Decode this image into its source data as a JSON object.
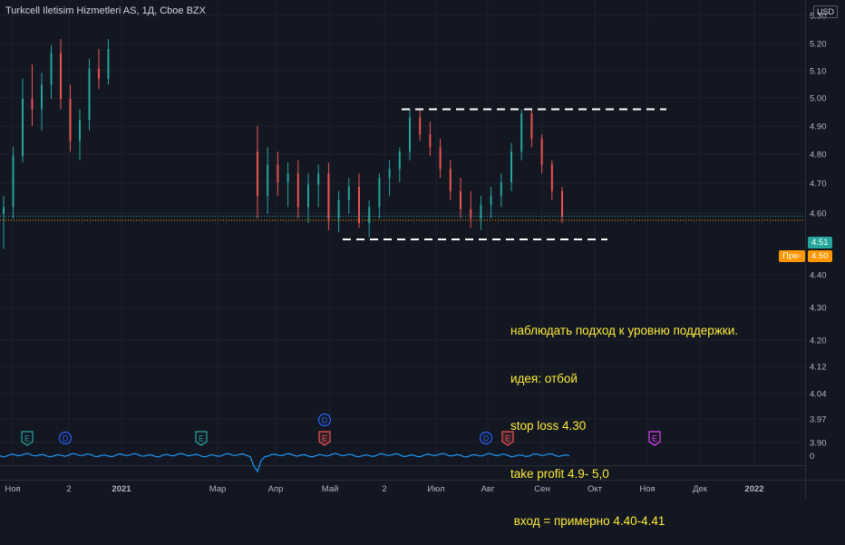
{
  "header": {
    "symbol": "Turkcell Iletisim Hizmetleri AS, 1Д, Cboe BZX",
    "currency": "USD"
  },
  "chart_data": {
    "type": "candlestick",
    "title": "Turkcell Iletisim Hizmetleri AS, 1Д, Cboe BZX",
    "price_axis": {
      "ticks": [
        "5.30",
        "5.20",
        "5.10",
        "5.00",
        "4.90",
        "4.80",
        "4.70",
        "4.60",
        "4.40",
        "4.30",
        "4.20",
        "4.12",
        "4.04",
        "3.97",
        "3.90"
      ],
      "scale": "log"
    },
    "time_axis": {
      "ticks": [
        "Ноя",
        "2",
        "2021",
        "Мар",
        "Апр",
        "Май",
        "2",
        "Июл",
        "Авг",
        "Сен",
        "Окт",
        "Ноя",
        "Дек",
        "2022"
      ]
    },
    "last_price": {
      "value": "4.51",
      "color": "#26a69a"
    },
    "prev_close": {
      "label": "Пре-",
      "value": "4.50",
      "color": "#ff9800"
    },
    "indicator_axis": {
      "ticks": [
        "0"
      ]
    },
    "levels": [
      {
        "name": "resistance",
        "value": 5.0
      },
      {
        "name": "support",
        "value": 4.41
      }
    ],
    "series": [
      {
        "name": "",
        "ohlc": [
          [
            4.52,
            4.6,
            4.37,
            4.55
          ],
          [
            4.55,
            4.82,
            4.5,
            4.78
          ],
          [
            4.78,
            5.15,
            4.75,
            5.05
          ],
          [
            5.05,
            5.22,
            4.92,
            5.0
          ],
          [
            5.0,
            5.18,
            4.9,
            5.12
          ],
          [
            5.12,
            5.32,
            5.05,
            5.28
          ],
          [
            5.28,
            5.35,
            5.0,
            5.05
          ],
          [
            5.05,
            5.12,
            4.8,
            4.85
          ],
          [
            4.85,
            5.0,
            4.76,
            4.95
          ],
          [
            4.95,
            5.25,
            4.9,
            5.2
          ],
          [
            5.2,
            5.3,
            5.1,
            5.15
          ],
          [
            5.15,
            5.35,
            5.12,
            5.3
          ]
        ]
      },
      {
        "name": "",
        "ohlc": [
          [
            4.8,
            4.92,
            4.5,
            4.6
          ],
          [
            4.6,
            4.82,
            4.52,
            4.74
          ],
          [
            4.74,
            4.8,
            4.6,
            4.66
          ],
          [
            4.66,
            4.75,
            4.55,
            4.7
          ],
          [
            4.7,
            4.76,
            4.5,
            4.55
          ],
          [
            4.55,
            4.7,
            4.48,
            4.65
          ],
          [
            4.65,
            4.74,
            4.55,
            4.7
          ],
          [
            4.7,
            4.75,
            4.45,
            4.5
          ],
          [
            4.5,
            4.62,
            4.44,
            4.58
          ],
          [
            4.58,
            4.68,
            4.52,
            4.64
          ],
          [
            4.64,
            4.7,
            4.46,
            4.48
          ],
          [
            4.48,
            4.58,
            4.42,
            4.55
          ],
          [
            4.55,
            4.7,
            4.5,
            4.68
          ],
          [
            4.68,
            4.76,
            4.6,
            4.72
          ],
          [
            4.72,
            4.82,
            4.66,
            4.8
          ],
          [
            4.8,
            5.0,
            4.76,
            4.96
          ],
          [
            4.96,
            5.0,
            4.85,
            4.88
          ],
          [
            4.88,
            4.94,
            4.78,
            4.82
          ],
          [
            4.82,
            4.86,
            4.68,
            4.72
          ],
          [
            4.72,
            4.76,
            4.58,
            4.62
          ],
          [
            4.62,
            4.68,
            4.5,
            4.54
          ],
          [
            4.54,
            4.62,
            4.46,
            4.5
          ],
          [
            4.5,
            4.6,
            4.45,
            4.56
          ],
          [
            4.56,
            4.64,
            4.5,
            4.6
          ],
          [
            4.6,
            4.7,
            4.55,
            4.66
          ],
          [
            4.66,
            4.84,
            4.62,
            4.8
          ],
          [
            4.8,
            5.0,
            4.76,
            4.98
          ],
          [
            4.98,
            5.0,
            4.82,
            4.86
          ],
          [
            4.86,
            4.88,
            4.7,
            4.74
          ],
          [
            4.74,
            4.76,
            4.58,
            4.62
          ],
          [
            4.62,
            4.64,
            4.48,
            4.51
          ]
        ]
      }
    ]
  },
  "annotation": {
    "lines": [
      "наблюдать подход к уровню поддержки.",
      "идея: отбой",
      "stop loss 4.30",
      "take profit 4.9- 5,0",
      " вход = примерно 4.40-4.41"
    ]
  },
  "events": [
    {
      "letter": "E",
      "color": "#26a69a"
    },
    {
      "letter": "D",
      "color": "#2962ff"
    },
    {
      "letter": "E",
      "color": "#26a69a"
    },
    {
      "letter": "D",
      "color": "#2962ff"
    },
    {
      "letter": "E",
      "color": "#ef5350"
    },
    {
      "letter": "D",
      "color": "#2962ff"
    },
    {
      "letter": "E",
      "color": "#ef5350"
    },
    {
      "letter": "E",
      "color": "#e040fb"
    }
  ],
  "colors": {
    "background": "#131722",
    "up": "#26a69a",
    "down": "#ef5350",
    "grid": "#1e222d",
    "annotation": "#ffeb3b",
    "indicator": "#2196f3"
  }
}
